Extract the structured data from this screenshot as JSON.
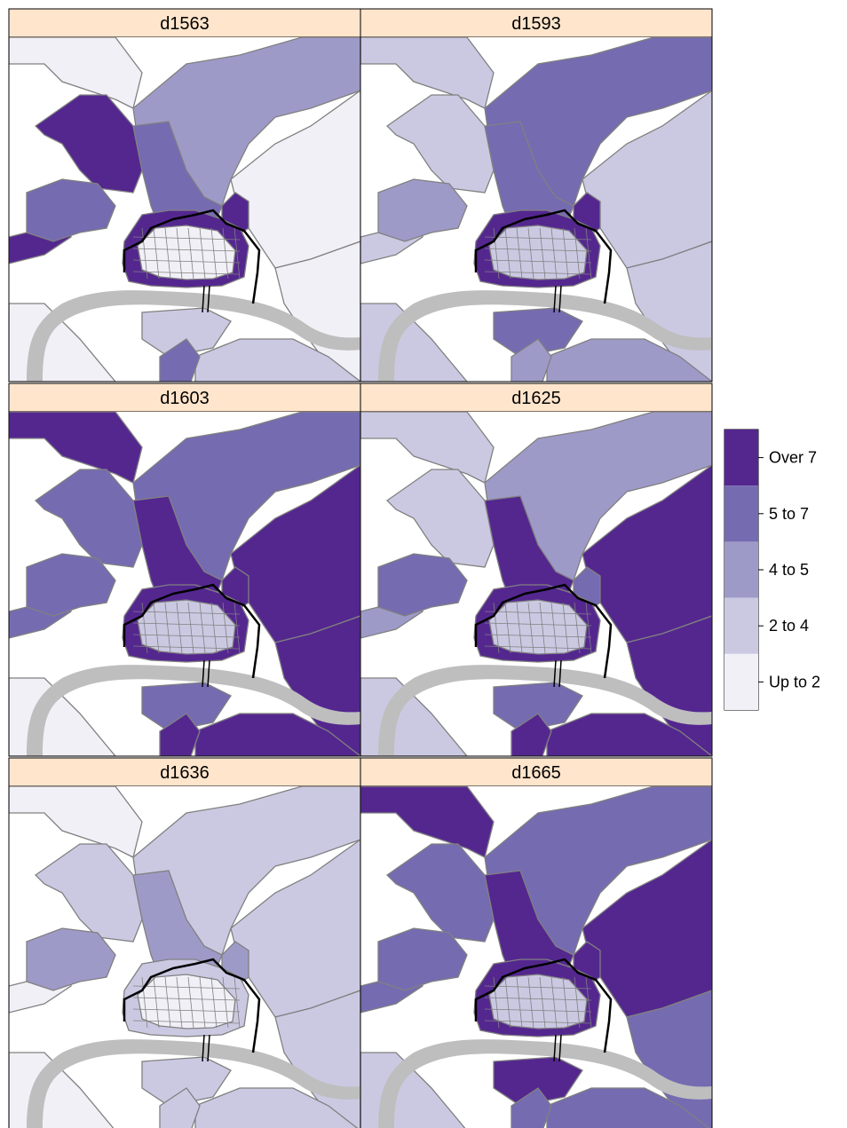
{
  "panels": [
    {
      "title": "d1563"
    },
    {
      "title": "d1593"
    },
    {
      "title": "d1603"
    },
    {
      "title": "d1625"
    },
    {
      "title": "d1636"
    },
    {
      "title": "d1665"
    }
  ],
  "legend": {
    "items": [
      {
        "label": "Over 7",
        "color": "#54278f"
      },
      {
        "label": "5 to 7",
        "color": "#756bb1"
      },
      {
        "label": "4 to 5",
        "color": "#9e9ac8"
      },
      {
        "label": "2 to 4",
        "color": "#cbc9e2"
      },
      {
        "label": "Up to 2",
        "color": "#f2f0f7"
      }
    ]
  },
  "colors": {
    "strip": "#ffe5cc",
    "river": "#bebebe",
    "boundary": "#808080",
    "city_wall": "#000000",
    "background": "#ffffff"
  },
  "panel_classes": {
    "d1563": {
      "north_a": "Up to 2",
      "north_b": "4 to 5",
      "nw_big": "Over 7",
      "center_n": "5 to 7",
      "north_east": "Up to 2",
      "east": "Up to 2",
      "se": "2 to 4",
      "sw": "Up to 2",
      "south": "2 to 4",
      "w_strip": "Over 7",
      "w_blocks": "5 to 7",
      "city_nt": "Over 7",
      "city": "Up to 2",
      "south_blob": "5 to 7",
      "ne_small": "Over 7"
    },
    "d1593": {
      "north_a": "2 to 4",
      "north_b": "5 to 7",
      "nw_big": "2 to 4",
      "center_n": "5 to 7",
      "north_east": "2 to 4",
      "east": "2 to 4",
      "se": "4 to 5",
      "sw": "2 to 4",
      "south": "5 to 7",
      "w_strip": "2 to 4",
      "w_blocks": "4 to 5",
      "city_nt": "Over 7",
      "city": "2 to 4",
      "south_blob": "4 to 5",
      "ne_small": "Over 7"
    },
    "d1603": {
      "north_a": "Over 7",
      "north_b": "5 to 7",
      "nw_big": "5 to 7",
      "center_n": "Over 7",
      "north_east": "Over 7",
      "east": "Over 7",
      "se": "Over 7",
      "sw": "Up to 2",
      "south": "5 to 7",
      "w_strip": "5 to 7",
      "w_blocks": "5 to 7",
      "city_nt": "Over 7",
      "city": "2 to 4",
      "south_blob": "Over 7",
      "ne_small": "Over 7"
    },
    "d1625": {
      "north_a": "2 to 4",
      "north_b": "4 to 5",
      "nw_big": "2 to 4",
      "center_n": "Over 7",
      "north_east": "Over 7",
      "east": "Over 7",
      "se": "Over 7",
      "sw": "2 to 4",
      "south": "5 to 7",
      "w_strip": "4 to 5",
      "w_blocks": "5 to 7",
      "city_nt": "Over 7",
      "city": "2 to 4",
      "south_blob": "Over 7",
      "ne_small": "5 to 7"
    },
    "d1636": {
      "north_a": "Up to 2",
      "north_b": "2 to 4",
      "nw_big": "2 to 4",
      "center_n": "4 to 5",
      "north_east": "2 to 4",
      "east": "2 to 4",
      "se": "2 to 4",
      "sw": "Up to 2",
      "south": "2 to 4",
      "w_strip": "Up to 2",
      "w_blocks": "4 to 5",
      "city_nt": "2 to 4",
      "city": "Up to 2",
      "south_blob": "2 to 4",
      "ne_small": "4 to 5"
    },
    "d1665": {
      "north_a": "Over 7",
      "north_b": "5 to 7",
      "nw_big": "5 to 7",
      "center_n": "Over 7",
      "north_east": "Over 7",
      "east": "5 to 7",
      "se": "5 to 7",
      "sw": "2 to 4",
      "south": "Over 7",
      "w_strip": "5 to 7",
      "w_blocks": "5 to 7",
      "city_nt": "Over 7",
      "city": "2 to 4",
      "south_blob": "5 to 7",
      "ne_small": "Over 7"
    }
  }
}
